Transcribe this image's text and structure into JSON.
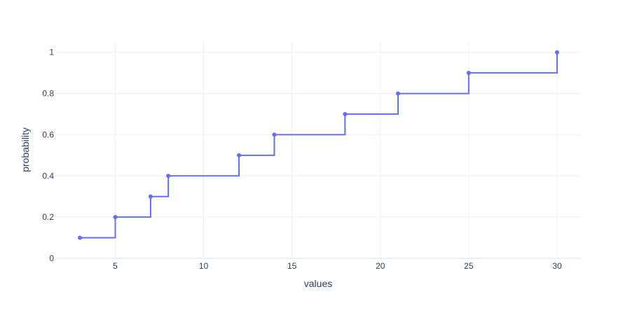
{
  "colors": {
    "background": "#ffffff",
    "grid": "#ebf0f8",
    "zero_line": "#ebf0f8",
    "series": "#636efa",
    "text": "#2a3f5f"
  },
  "chart_data": {
    "type": "line",
    "line_shape": "step-after (ECDF)",
    "markers": true,
    "grid": true,
    "xlabel": "values",
    "ylabel": "probability",
    "xlim": [
      1.65,
      31.35
    ],
    "ylim": [
      0,
      1.05
    ],
    "x_ticks": [
      5,
      10,
      15,
      20,
      25,
      30
    ],
    "x_tick_labels": [
      "5",
      "10",
      "15",
      "20",
      "25",
      "30"
    ],
    "y_ticks": [
      0,
      0.2,
      0.4,
      0.6,
      0.8,
      1
    ],
    "y_tick_labels": [
      "0",
      "0.2",
      "0.4",
      "0.6",
      "0.8",
      "1"
    ],
    "series": [
      {
        "x": [
          3,
          5,
          7,
          8,
          12,
          14,
          18,
          21,
          25,
          30
        ],
        "y": [
          0.1,
          0.2,
          0.3,
          0.4,
          0.5,
          0.6,
          0.7,
          0.8,
          0.9,
          1.0
        ]
      }
    ]
  }
}
